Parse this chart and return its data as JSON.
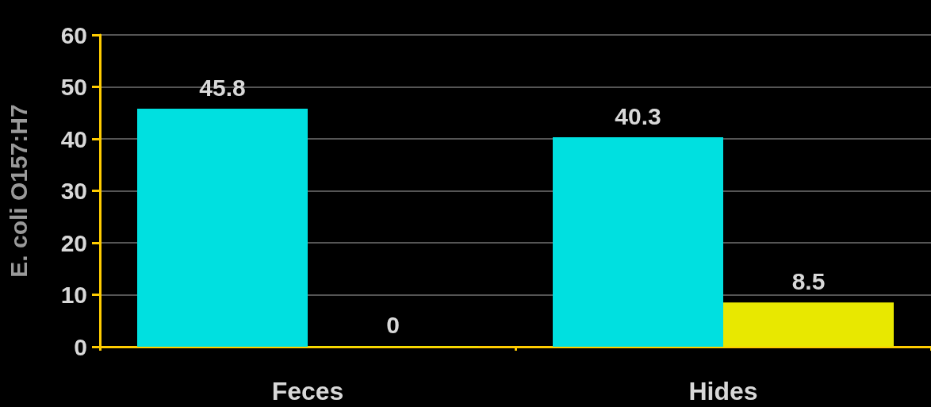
{
  "chart_data": {
    "type": "bar",
    "ylabel": "E. coli O157:H7",
    "categories": [
      "Feces",
      "Hides"
    ],
    "series": [
      {
        "color": "#00e0e0",
        "values": [
          45.8,
          40.3
        ]
      },
      {
        "color": "#e8e800",
        "values": [
          0,
          8.5
        ]
      }
    ],
    "ylim": [
      0,
      60
    ],
    "yticks": [
      0,
      10,
      20,
      30,
      40,
      50,
      60
    ],
    "grid": "y",
    "data_labels": true
  }
}
